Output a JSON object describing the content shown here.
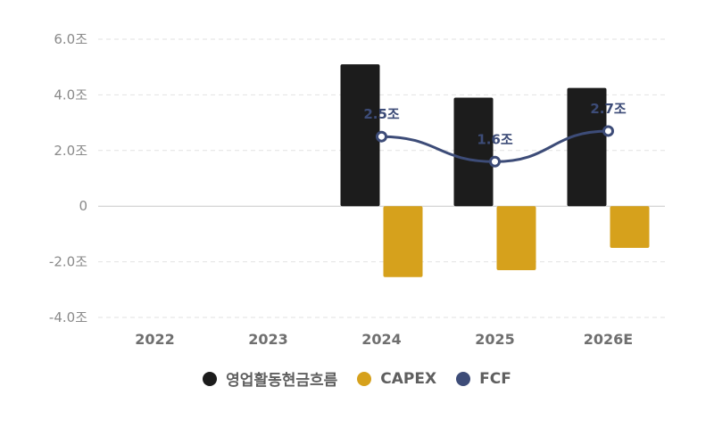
{
  "chart_data": {
    "type": "bar",
    "categories": [
      "2022",
      "2023",
      "2024",
      "2025",
      "2026E"
    ],
    "series": [
      {
        "name": "영업활동현금흐름",
        "type": "bar",
        "color": "#1c1c1c",
        "values": [
          null,
          null,
          5.1,
          3.9,
          4.25
        ]
      },
      {
        "name": "CAPEX",
        "type": "bar",
        "color": "#d6a11c",
        "values": [
          null,
          null,
          -2.55,
          -2.3,
          -1.5
        ]
      },
      {
        "name": "FCF",
        "type": "line",
        "color": "#3d4c78",
        "values": [
          null,
          null,
          2.5,
          1.6,
          2.7
        ]
      }
    ],
    "data_labels": [
      "",
      "",
      "2.5조",
      "1.6조",
      "2.7조"
    ],
    "y_ticks": [
      "6.0조",
      "4.0조",
      "2.0조",
      "0",
      "-2.0조",
      "-4.0조"
    ],
    "ylim": [
      -4,
      6
    ],
    "grid": true,
    "legend_position": "bottom"
  }
}
